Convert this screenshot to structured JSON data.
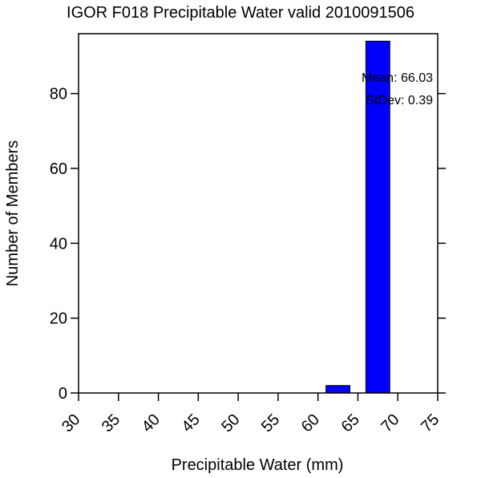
{
  "chart_data": {
    "type": "bar",
    "title": "IGOR F018 Precipitable Water valid 2010091506",
    "xlabel": "Precipitable Water (mm)",
    "ylabel": "Number of Members",
    "xlim": [
      30,
      75
    ],
    "ylim": [
      0,
      96
    ],
    "x_ticks": [
      "30",
      "35",
      "40",
      "45",
      "50",
      "55",
      "60",
      "65",
      "70",
      "75"
    ],
    "y_ticks": [
      "0",
      "20",
      "40",
      "60",
      "80"
    ],
    "bins": [
      {
        "start": 61,
        "end": 64,
        "value": 2
      },
      {
        "start": 66,
        "end": 69,
        "value": 94
      }
    ],
    "bar_color": "#0000ff",
    "annotations": [
      "Mean: 66.03",
      "StDev: 0.39"
    ],
    "grid": false
  }
}
